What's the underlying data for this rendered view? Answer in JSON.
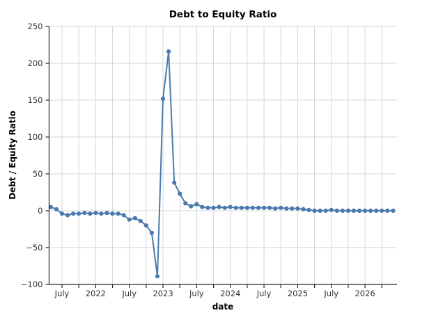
{
  "chart_data": {
    "type": "line",
    "title": "Debt to Equity Ratio",
    "xlabel": "date",
    "ylabel": "Debt / Equity Ratio",
    "grid": true,
    "legend": "none",
    "line_color": "#4a7aad",
    "marker_color": "#4a7aad",
    "grid_color": "#d6d6d6",
    "axis_color": "#262626",
    "tick_label_color": "#333333",
    "ylim": [
      -100,
      250
    ],
    "yticks": [
      -100,
      -50,
      0,
      50,
      100,
      150,
      200,
      250
    ],
    "ytick_labels": [
      "−100",
      "−50",
      "0",
      "50",
      "100",
      "150",
      "200",
      "250"
    ],
    "xticks": [
      {
        "label": "July",
        "index": 2
      },
      {
        "label": "2022",
        "index": 8
      },
      {
        "label": "July",
        "index": 14
      },
      {
        "label": "2023",
        "index": 20
      },
      {
        "label": "July",
        "index": 26
      },
      {
        "label": "2024",
        "index": 32
      },
      {
        "label": "July",
        "index": 38
      },
      {
        "label": "2025",
        "index": 44
      },
      {
        "label": "July",
        "index": 50
      },
      {
        "label": "2026",
        "index": 56
      }
    ],
    "minor_tick_indices": [
      5,
      11,
      17,
      23,
      29,
      35,
      41,
      47,
      53,
      59
    ],
    "x": [
      "2021-05",
      "2021-06",
      "2021-07",
      "2021-08",
      "2021-09",
      "2021-10",
      "2021-11",
      "2021-12",
      "2022-01",
      "2022-02",
      "2022-03",
      "2022-04",
      "2022-05",
      "2022-06",
      "2022-07",
      "2022-08",
      "2022-09",
      "2022-10",
      "2022-11",
      "2022-12",
      "2023-01",
      "2023-02",
      "2023-03",
      "2023-04",
      "2023-05",
      "2023-06",
      "2023-07",
      "2023-08",
      "2023-09",
      "2023-10",
      "2023-11",
      "2023-12",
      "2024-01",
      "2024-02",
      "2024-03",
      "2024-04",
      "2024-05",
      "2024-06",
      "2024-07",
      "2024-08",
      "2024-09",
      "2024-10",
      "2024-11",
      "2024-12",
      "2025-01",
      "2025-02",
      "2025-03",
      "2025-04",
      "2025-05",
      "2025-06",
      "2025-07",
      "2025-08",
      "2025-09",
      "2025-10",
      "2025-11",
      "2025-12",
      "2026-01",
      "2026-02",
      "2026-03",
      "2026-04",
      "2026-05",
      "2026-06"
    ],
    "values": [
      5,
      2,
      -4,
      -6,
      -4,
      -4,
      -3,
      -4,
      -3,
      -4,
      -3,
      -4,
      -4,
      -6,
      -12,
      -10,
      -14,
      -20,
      -30,
      -89,
      152,
      216,
      38,
      23,
      10,
      6,
      9,
      5,
      4,
      4,
      5,
      4,
      5,
      4,
      4,
      4,
      4,
      4,
      4,
      4,
      3,
      4,
      3,
      3,
      3,
      2,
      1,
      0,
      0,
      0,
      1,
      0,
      0,
      0,
      0,
      0,
      0,
      0,
      0,
      0,
      0,
      0
    ]
  }
}
